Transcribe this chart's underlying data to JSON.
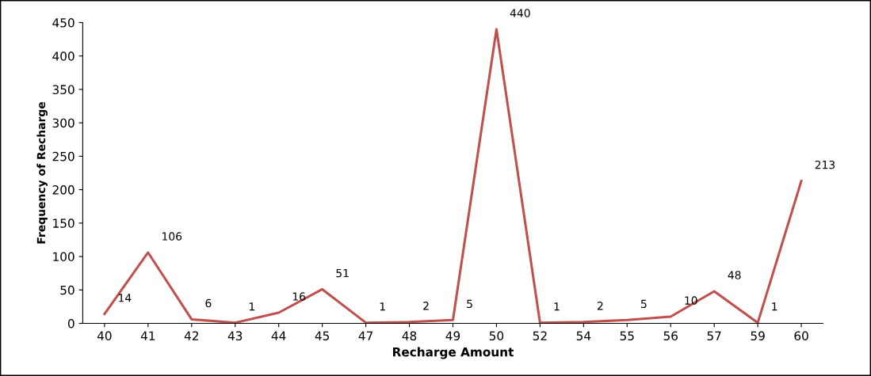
{
  "chart_data": {
    "type": "line",
    "xlabel": "Recharge Amount",
    "ylabel": "Frequency of Recharge",
    "categories": [
      "40",
      "41",
      "42",
      "43",
      "44",
      "45",
      "47",
      "48",
      "49",
      "50",
      "52",
      "54",
      "55",
      "56",
      "57",
      "59",
      "60"
    ],
    "series": [
      {
        "color": "#c0504d",
        "values": [
          14,
          106,
          6,
          1,
          16,
          51,
          1,
          2,
          5,
          440,
          1,
          2,
          5,
          10,
          48,
          1,
          213
        ]
      }
    ],
    "ylim": [
      0,
      450
    ],
    "yticks": [
      0,
      50,
      100,
      150,
      200,
      250,
      300,
      350,
      400,
      450
    ],
    "data_labels": true,
    "grid": false,
    "legend": false,
    "marker": "none",
    "line_style": "solid"
  }
}
